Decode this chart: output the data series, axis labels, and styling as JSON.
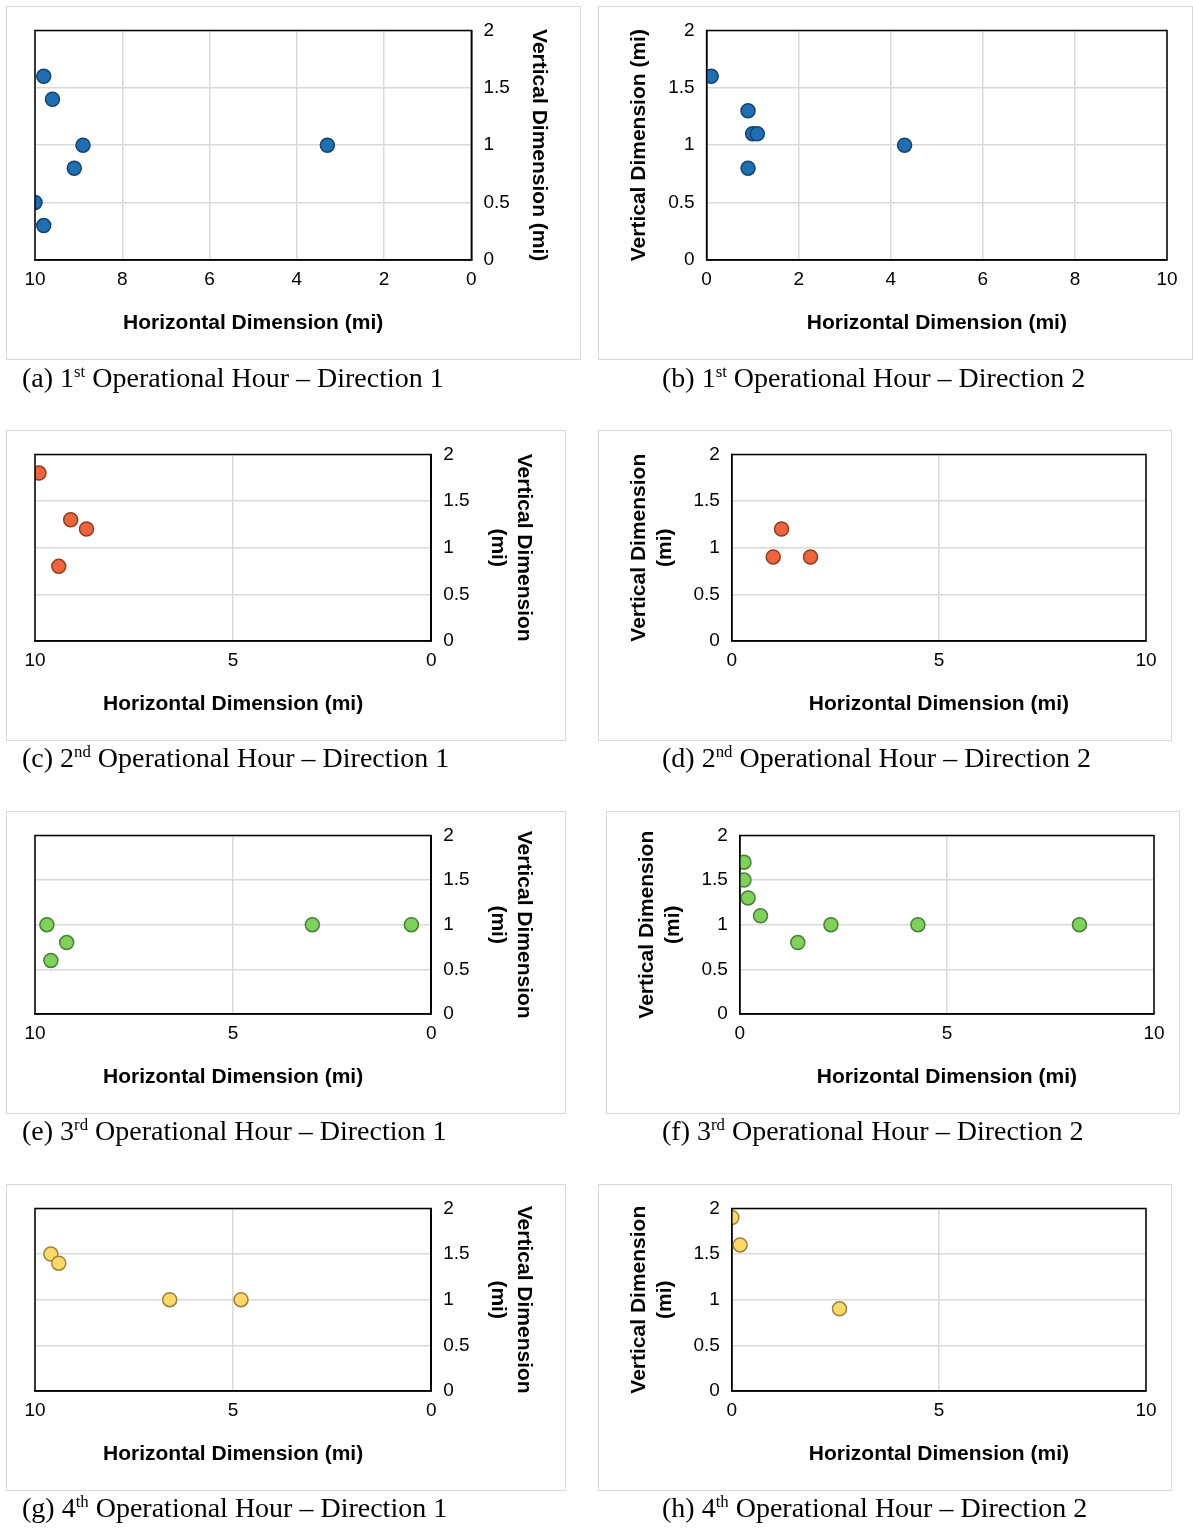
{
  "chart_data": [
    {
      "type": "scatter",
      "title": "(a)  1$^{st}$ Operational Hour – Direction 1",
      "xlabel": "Horizontal Dimension (mi)",
      "ylabel": "Vertical Dimension (mi)",
      "x": [
        9.8,
        9.6,
        8.9,
        9.1,
        10,
        9.8,
        3.3
      ],
      "values": [
        1.6,
        1.4,
        1.0,
        0.8,
        0.5,
        0.3,
        1.0
      ],
      "color": "#1f6fb4",
      "xlim": [
        10,
        0
      ],
      "xticks": [
        10,
        8,
        6,
        4,
        2,
        0
      ],
      "ylim": [
        0,
        2
      ],
      "yticks": [
        0,
        0.5,
        1,
        1.5,
        2
      ],
      "grid": true,
      "marker": "circle"
    },
    {
      "type": "scatter",
      "title": "(b)  1$^{st}$ Operational Hour – Direction 2",
      "xlabel": "Horizontal Dimension (mi)",
      "ylabel": "Vertical Dimension (mi)",
      "x": [
        0.1,
        0.9,
        1.0,
        1.1,
        0.9,
        4.3
      ],
      "values": [
        1.6,
        1.3,
        1.1,
        1.1,
        0.8,
        1.0
      ],
      "color": "#1f6fb4",
      "xlim": [
        0,
        10
      ],
      "xticks": [
        0,
        2,
        4,
        6,
        8,
        10
      ],
      "ylim": [
        0,
        2
      ],
      "yticks": [
        0,
        0.5,
        1,
        1.5,
        2
      ],
      "grid": true,
      "marker": "circle"
    },
    {
      "type": "scatter",
      "title": "(c)  2$^{nd}$ Operational Hour – Direction 1",
      "xlabel": "Horizontal Dimension (mi)",
      "ylabel": "Vertical Dimension (mi)",
      "x": [
        9.9,
        9.1,
        8.7,
        9.4
      ],
      "values": [
        1.8,
        1.3,
        1.2,
        0.8
      ],
      "color": "#f0643c",
      "xlim": [
        10,
        0
      ],
      "xticks": [
        10,
        5,
        0
      ],
      "ylim": [
        0,
        2
      ],
      "yticks": [
        0,
        0.5,
        1,
        1.5,
        2
      ],
      "grid": true,
      "marker": "circle"
    },
    {
      "type": "scatter",
      "title": "(d)  2$^{nd}$ Operational Hour – Direction 2",
      "xlabel": "Horizontal Dimension (mi)",
      "ylabel": "Vertical Dimension (mi)",
      "x": [
        1.0,
        1.2,
        1.9
      ],
      "values": [
        0.9,
        1.2,
        0.9
      ],
      "color": "#f0643c",
      "xlim": [
        0,
        10
      ],
      "xticks": [
        0,
        5,
        10
      ],
      "ylim": [
        0,
        2
      ],
      "yticks": [
        0,
        0.5,
        1,
        1.5,
        2
      ],
      "grid": true,
      "marker": "circle"
    },
    {
      "type": "scatter",
      "title": "(e)  3$^{rd}$ Operational Hour – Direction 1",
      "xlabel": "Horizontal Dimension (mi)",
      "ylabel": "Vertical Dimension (mi)",
      "x": [
        9.7,
        9.2,
        9.6,
        3.0,
        0.5
      ],
      "values": [
        1.0,
        0.8,
        0.6,
        1.0,
        1.0
      ],
      "color": "#7dd35a",
      "xlim": [
        10,
        0
      ],
      "xticks": [
        10,
        5,
        0
      ],
      "ylim": [
        0,
        2
      ],
      "yticks": [
        0,
        0.5,
        1,
        1.5,
        2
      ],
      "grid": true,
      "marker": "circle"
    },
    {
      "type": "scatter",
      "title": "(f)  3$^{rd}$ Operational Hour – Direction 2",
      "xlabel": "Horizontal Dimension (mi)",
      "ylabel": "Vertical Dimension (mi)",
      "x": [
        0.1,
        0.1,
        0.2,
        0.5,
        1.4,
        2.2,
        4.3,
        8.2
      ],
      "values": [
        1.7,
        1.5,
        1.3,
        1.1,
        0.8,
        1.0,
        1.0,
        1.0
      ],
      "color": "#7dd35a",
      "xlim": [
        0,
        10
      ],
      "xticks": [
        0,
        5,
        10
      ],
      "ylim": [
        0,
        2
      ],
      "yticks": [
        0,
        0.5,
        1,
        1.5,
        2
      ],
      "grid": true,
      "marker": "circle"
    },
    {
      "type": "scatter",
      "title": "(g)  4$^{th}$ Operational Hour – Direction 1",
      "xlabel": "Horizontal Dimension (mi)",
      "ylabel": "Vertical Dimension (mi)",
      "x": [
        9.6,
        9.4,
        6.6,
        4.8
      ],
      "values": [
        1.5,
        1.4,
        1.0,
        1.0
      ],
      "color": "#ffd966",
      "xlim": [
        10,
        0
      ],
      "xticks": [
        10,
        5,
        0
      ],
      "ylim": [
        0,
        2
      ],
      "yticks": [
        0,
        0.5,
        1,
        1.5,
        2
      ],
      "grid": true,
      "marker": "circle"
    },
    {
      "type": "scatter",
      "title": "(h)  4$^{th}$ Operational Hour – Direction 2",
      "xlabel": "Horizontal Dimension (mi)",
      "ylabel": "Vertical Dimension (mi)",
      "x": [
        0,
        0.2,
        2.6
      ],
      "values": [
        1.9,
        1.6,
        0.9
      ],
      "color": "#ffd966",
      "xlim": [
        0,
        10
      ],
      "xticks": [
        0,
        5,
        10
      ],
      "ylim": [
        0,
        2
      ],
      "yticks": [
        0,
        0.5,
        1,
        1.5,
        2
      ],
      "grid": true,
      "marker": "circle"
    }
  ]
}
